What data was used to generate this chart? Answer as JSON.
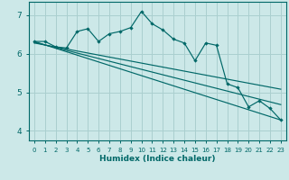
{
  "xlabel": "Humidex (Indice chaleur)",
  "bg_color": "#cce8e8",
  "grid_color": "#aacfcf",
  "line_color": "#006868",
  "xlim": [
    -0.5,
    23.5
  ],
  "ylim": [
    3.75,
    7.35
  ],
  "xticks": [
    0,
    1,
    2,
    3,
    4,
    5,
    6,
    7,
    8,
    9,
    10,
    11,
    12,
    13,
    14,
    15,
    16,
    17,
    18,
    19,
    20,
    21,
    22,
    23
  ],
  "yticks": [
    4,
    5,
    6,
    7
  ],
  "scatter_x": [
    0,
    1,
    2,
    3,
    4,
    5,
    6,
    7,
    8,
    9,
    10,
    11,
    12,
    13,
    14,
    15,
    16,
    17,
    18,
    19,
    20,
    21,
    22,
    23
  ],
  "scatter_y": [
    6.32,
    6.32,
    6.18,
    6.15,
    6.58,
    6.65,
    6.32,
    6.52,
    6.58,
    6.68,
    7.1,
    6.78,
    6.62,
    6.38,
    6.28,
    5.82,
    6.28,
    6.22,
    5.22,
    5.12,
    4.62,
    4.78,
    4.58,
    4.28
  ],
  "line1_x": [
    0,
    23
  ],
  "line1_y": [
    6.32,
    4.28
  ],
  "line2_x": [
    0,
    23
  ],
  "line2_y": [
    6.28,
    5.08
  ],
  "line3_x": [
    0,
    23
  ],
  "line3_y": [
    6.3,
    4.68
  ]
}
